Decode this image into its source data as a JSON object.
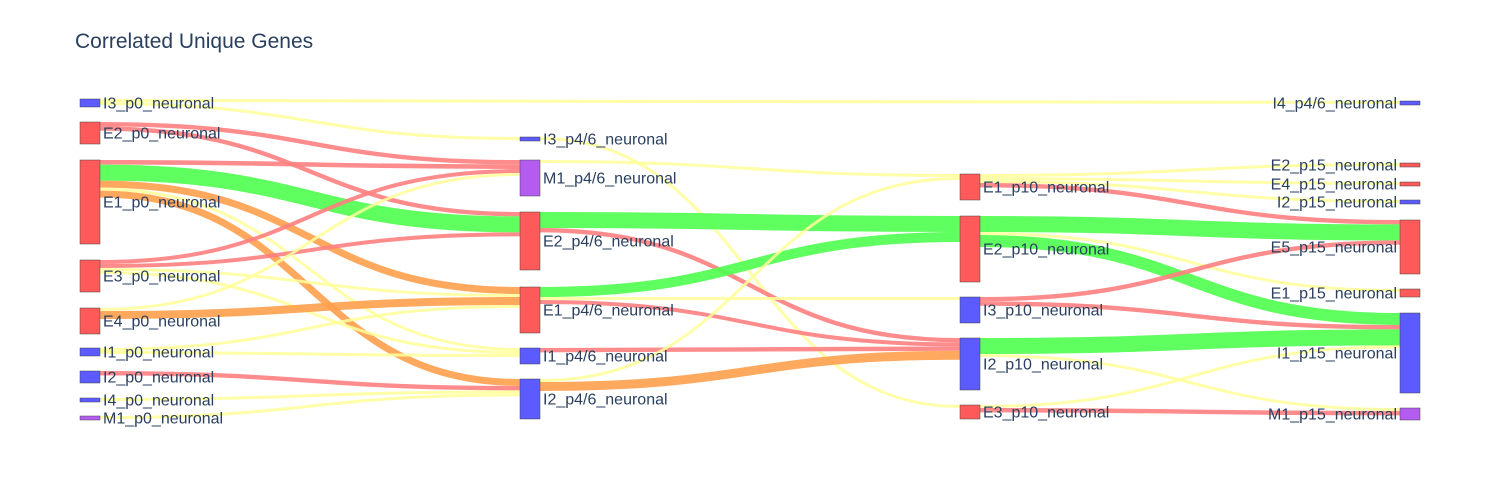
{
  "chart_data": {
    "type": "sankey",
    "title": "Correlated Unique Genes",
    "colors": {
      "excitatory": "#ff5a5a",
      "inhibitory": "#5b5bff",
      "mixed": "#b45bf0",
      "link_red": "#ff7f7f",
      "link_green": "#4dff4d",
      "link_orange": "#ffa04d",
      "link_yellow": "#ffff99"
    },
    "nodes": [
      {
        "id": "I3_p0",
        "label": "I3_p0_neuronal",
        "stage": 0,
        "color": "#5b5bff"
      },
      {
        "id": "E2_p0",
        "label": "E2_p0_neuronal",
        "stage": 0,
        "color": "#ff5a5a"
      },
      {
        "id": "E1_p0",
        "label": "E1_p0_neuronal",
        "stage": 0,
        "color": "#ff5a5a"
      },
      {
        "id": "E3_p0",
        "label": "E3_p0_neuronal",
        "stage": 0,
        "color": "#ff5a5a"
      },
      {
        "id": "E4_p0",
        "label": "E4_p0_neuronal",
        "stage": 0,
        "color": "#ff5a5a"
      },
      {
        "id": "I1_p0",
        "label": "I1_p0_neuronal",
        "stage": 0,
        "color": "#5b5bff"
      },
      {
        "id": "I2_p0",
        "label": "I2_p0_neuronal",
        "stage": 0,
        "color": "#5b5bff"
      },
      {
        "id": "I4_p0",
        "label": "I4_p0_neuronal",
        "stage": 0,
        "color": "#5b5bff"
      },
      {
        "id": "M1_p0",
        "label": "M1_p0_neuronal",
        "stage": 0,
        "color": "#b45bf0"
      },
      {
        "id": "I3_p46",
        "label": "I3_p4/6_neuronal",
        "stage": 1,
        "color": "#5b5bff"
      },
      {
        "id": "M1_p46",
        "label": "M1_p4/6_neuronal",
        "stage": 1,
        "color": "#b45bf0"
      },
      {
        "id": "E2_p46",
        "label": "E2_p4/6_neuronal",
        "stage": 1,
        "color": "#ff5a5a"
      },
      {
        "id": "E1_p46",
        "label": "E1_p4/6_neuronal",
        "stage": 1,
        "color": "#ff5a5a"
      },
      {
        "id": "I1_p46",
        "label": "I1_p4/6_neuronal",
        "stage": 1,
        "color": "#5b5bff"
      },
      {
        "id": "I2_p46",
        "label": "I2_p4/6_neuronal",
        "stage": 1,
        "color": "#5b5bff"
      },
      {
        "id": "E1_p10",
        "label": "E1_p10_neuronal",
        "stage": 2,
        "color": "#ff5a5a"
      },
      {
        "id": "E2_p10",
        "label": "E2_p10_neuronal",
        "stage": 2,
        "color": "#ff5a5a"
      },
      {
        "id": "I3_p10",
        "label": "I3_p10_neuronal",
        "stage": 2,
        "color": "#5b5bff"
      },
      {
        "id": "I2_p10",
        "label": "I2_p10_neuronal",
        "stage": 2,
        "color": "#5b5bff"
      },
      {
        "id": "E3_p10",
        "label": "E3_p10_neuronal",
        "stage": 2,
        "color": "#ff5a5a"
      },
      {
        "id": "I4_p46_last",
        "label": "I4_p4/6_neuronal",
        "stage": 3,
        "color": "#5b5bff"
      },
      {
        "id": "E2_p15",
        "label": "E2_p15_neuronal",
        "stage": 3,
        "color": "#ff5a5a"
      },
      {
        "id": "E4_p15",
        "label": "E4_p15_neuronal",
        "stage": 3,
        "color": "#ff5a5a"
      },
      {
        "id": "I2_p15",
        "label": "I2_p15_neuronal",
        "stage": 3,
        "color": "#5b5bff"
      },
      {
        "id": "E5_p15",
        "label": "E5_p15_neuronal",
        "stage": 3,
        "color": "#ff5a5a"
      },
      {
        "id": "E1_p15",
        "label": "E1_p15_neuronal",
        "stage": 3,
        "color": "#ff5a5a"
      },
      {
        "id": "I1_p15",
        "label": "I1_p15_neuronal",
        "stage": 3,
        "color": "#5b5bff"
      },
      {
        "id": "M1_p15",
        "label": "M1_p15_neuronal",
        "stage": 3,
        "color": "#b45bf0"
      }
    ],
    "links": [
      {
        "source": "I3_p0",
        "target": "I4_p46_last",
        "value": 0.5,
        "color": "#ffff99"
      },
      {
        "source": "I3_p0",
        "target": "I3_p46",
        "value": 0.3,
        "color": "#ffff99"
      },
      {
        "source": "E2_p0",
        "target": "M1_p46",
        "value": 2.2,
        "color": "#ff7f7f"
      },
      {
        "source": "E2_p0",
        "target": "E2_p46",
        "value": 2.2,
        "color": "#ff7f7f"
      },
      {
        "source": "E1_p0",
        "target": "M1_p46",
        "value": 2.3,
        "color": "#ff7f7f"
      },
      {
        "source": "E1_p0",
        "target": "E2_p46",
        "value": 8.0,
        "color": "#4dff4d"
      },
      {
        "source": "E1_p0",
        "target": "E1_p46",
        "value": 3.5,
        "color": "#ffa04d"
      },
      {
        "source": "E1_p0",
        "target": "I2_p46",
        "value": 3.5,
        "color": "#ffa04d"
      },
      {
        "source": "E1_p0",
        "target": "I1_p46",
        "value": 0.4,
        "color": "#ffff99"
      },
      {
        "source": "E3_p0",
        "target": "M1_p46",
        "value": 2.0,
        "color": "#ff7f7f"
      },
      {
        "source": "E3_p0",
        "target": "E2_p46",
        "value": 2.0,
        "color": "#ff7f7f"
      },
      {
        "source": "E3_p0",
        "target": "E1_p46",
        "value": 0.4,
        "color": "#ffff99"
      },
      {
        "source": "E3_p0",
        "target": "I1_p46",
        "value": 0.4,
        "color": "#ffff99"
      },
      {
        "source": "E4_p0",
        "target": "E1_p46",
        "value": 4.0,
        "color": "#ffa04d"
      },
      {
        "source": "E4_p0",
        "target": "M1_p46",
        "value": 0.3,
        "color": "#ffff99"
      },
      {
        "source": "I1_p0",
        "target": "E1_p46",
        "value": 0.3,
        "color": "#ffff99"
      },
      {
        "source": "I1_p0",
        "target": "I1_p46",
        "value": 0.3,
        "color": "#ffff99"
      },
      {
        "source": "I2_p0",
        "target": "I2_p46",
        "value": 2.2,
        "color": "#ff7f7f"
      },
      {
        "source": "I4_p0",
        "target": "I2_p46",
        "value": 0.3,
        "color": "#ffff99"
      },
      {
        "source": "M1_p0",
        "target": "I2_p46",
        "value": 0.3,
        "color": "#ffff99"
      },
      {
        "source": "I3_p46",
        "target": "E3_p10",
        "value": 0.3,
        "color": "#ffff99"
      },
      {
        "source": "M1_p46",
        "target": "E1_p10",
        "value": 0.4,
        "color": "#ffff99"
      },
      {
        "source": "E2_p46",
        "target": "E2_p10",
        "value": 8.0,
        "color": "#4dff4d"
      },
      {
        "source": "E2_p46",
        "target": "I2_p10",
        "value": 2.2,
        "color": "#ff7f7f"
      },
      {
        "source": "E1_p46",
        "target": "E2_p10",
        "value": 5.0,
        "color": "#4dff4d"
      },
      {
        "source": "E1_p46",
        "target": "I2_p10",
        "value": 2.0,
        "color": "#ff7f7f"
      },
      {
        "source": "E1_p46",
        "target": "I3_p10",
        "value": 0.3,
        "color": "#ffff99"
      },
      {
        "source": "I1_p46",
        "target": "I2_p10",
        "value": 2.2,
        "color": "#ff7f7f"
      },
      {
        "source": "I2_p46",
        "target": "I2_p10",
        "value": 4.5,
        "color": "#ffa04d"
      },
      {
        "source": "I2_p46",
        "target": "E1_p10",
        "value": 0.3,
        "color": "#ffff99"
      },
      {
        "source": "E1_p10",
        "target": "E5_p15",
        "value": 2.2,
        "color": "#ff7f7f"
      },
      {
        "source": "E1_p10",
        "target": "E2_p15",
        "value": 0.3,
        "color": "#ffff99"
      },
      {
        "source": "E1_p10",
        "target": "E4_p15",
        "value": 0.3,
        "color": "#ffff99"
      },
      {
        "source": "E1_p10",
        "target": "I2_p15",
        "value": 0.3,
        "color": "#ffff99"
      },
      {
        "source": "E2_p10",
        "target": "E5_p15",
        "value": 8.0,
        "color": "#4dff4d"
      },
      {
        "source": "E2_p10",
        "target": "I1_p15",
        "value": 6.0,
        "color": "#4dff4d"
      },
      {
        "source": "E2_p10",
        "target": "E1_p15",
        "value": 0.3,
        "color": "#ffff99"
      },
      {
        "source": "I3_p10",
        "target": "E5_p15",
        "value": 2.2,
        "color": "#ff7f7f"
      },
      {
        "source": "I3_p10",
        "target": "I1_p15",
        "value": 2.2,
        "color": "#ff7f7f"
      },
      {
        "source": "I2_p10",
        "target": "I1_p15",
        "value": 8.0,
        "color": "#4dff4d"
      },
      {
        "source": "I2_p10",
        "target": "M1_p15",
        "value": 0.4,
        "color": "#ffff99"
      },
      {
        "source": "E3_p10",
        "target": "M1_p15",
        "value": 2.2,
        "color": "#ff7f7f"
      },
      {
        "source": "E3_p10",
        "target": "I1_p15",
        "value": 0.3,
        "color": "#ffff99"
      }
    ]
  }
}
